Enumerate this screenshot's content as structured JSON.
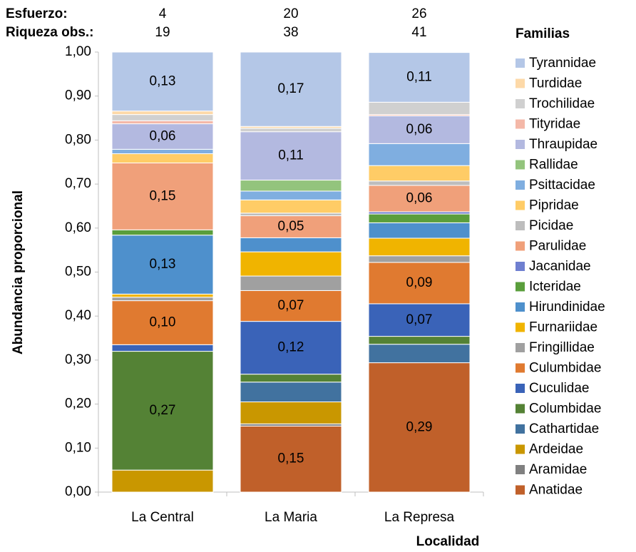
{
  "chart_data": {
    "type": "stacked_bar",
    "effort_label": "Esfuerzo:",
    "effort": [
      4,
      20,
      26
    ],
    "richness_label": "Riqueza obs.:",
    "richness": [
      19,
      38,
      41
    ],
    "ylabel": "Abundancia proporcional",
    "xlabel": "Localidad",
    "legend_title": "Familias",
    "legend": "right",
    "categories": [
      "La Central",
      "La Maria",
      "La Represa"
    ],
    "ylim": [
      0,
      1
    ],
    "yticks": [
      {
        "value": 0,
        "label": "0,00"
      },
      {
        "value": 0.1,
        "label": "0,10"
      },
      {
        "value": 0.2,
        "label": "0,20"
      },
      {
        "value": 0.3,
        "label": "0,30"
      },
      {
        "value": 0.4,
        "label": "0,40"
      },
      {
        "value": 0.5,
        "label": "0,50"
      },
      {
        "value": 0.6,
        "label": "0,60"
      },
      {
        "value": 0.7,
        "label": "0,70"
      },
      {
        "value": 0.8,
        "label": "0,80"
      },
      {
        "value": 0.9,
        "label": "0,90"
      },
      {
        "value": 1,
        "label": "1,00"
      }
    ],
    "series": [
      {
        "name": "Anatidae",
        "color": "#c0602a",
        "values": [
          0,
          0.15,
          0.294
        ],
        "value_labels": [
          null,
          "0,15",
          "0,29"
        ]
      },
      {
        "name": "Aramidae",
        "color": "#808080",
        "values": [
          0,
          0.005,
          0
        ]
      },
      {
        "name": "Ardeidae",
        "color": "#c99700",
        "values": [
          0.05,
          0.05,
          0
        ]
      },
      {
        "name": "Cathartidae",
        "color": "#41729f",
        "values": [
          0,
          0.045,
          0.042
        ]
      },
      {
        "name": "Columbidae",
        "color": "#548235",
        "values": [
          0.27,
          0.018,
          0.018
        ],
        "value_labels": [
          "0,27",
          null,
          null
        ]
      },
      {
        "name": "Cuculidae",
        "color": "#3a63b8",
        "values": [
          0.015,
          0.12,
          0.074
        ],
        "value_labels": [
          null,
          "0,12",
          "0,07"
        ]
      },
      {
        "name": "Culumbidae",
        "color": "#e07a30",
        "values": [
          0.1,
          0.07,
          0.094
        ],
        "value_labels": [
          "0,10",
          "0,07",
          "0,09"
        ]
      },
      {
        "name": "Fringillidae",
        "color": "#a0a0a0",
        "values": [
          0.008,
          0.033,
          0.015
        ]
      },
      {
        "name": "Furnariidae",
        "color": "#f0b400",
        "values": [
          0.007,
          0.055,
          0.04
        ]
      },
      {
        "name": "Hirundinidae",
        "color": "#4e90cc",
        "values": [
          0.134,
          0.032,
          0.035
        ],
        "value_labels": [
          "0,13",
          null,
          null
        ]
      },
      {
        "name": "Icteridae",
        "color": "#5a9e3c",
        "values": [
          0.012,
          0,
          0.02
        ]
      },
      {
        "name": "Jacanidae",
        "color": "#6f7fd0",
        "values": [
          0,
          0,
          0.005
        ]
      },
      {
        "name": "Parulidae",
        "color": "#f0a07a",
        "values": [
          0.152,
          0.05,
          0.06
        ],
        "value_labels": [
          "0,15",
          "0,05",
          "0,06"
        ]
      },
      {
        "name": "Picidae",
        "color": "#bdbdbd",
        "values": [
          0,
          0.006,
          0.01
        ]
      },
      {
        "name": "Pipridae",
        "color": "#ffcc66",
        "values": [
          0.021,
          0.03,
          0.035
        ]
      },
      {
        "name": "Psittacidae",
        "color": "#7faee0",
        "values": [
          0.01,
          0.02,
          0.05
        ]
      },
      {
        "name": "Rallidae",
        "color": "#93c47d",
        "values": [
          0,
          0.025,
          0
        ]
      },
      {
        "name": "Thraupidae",
        "color": "#b3b9e0",
        "values": [
          0.058,
          0.11,
          0.063
        ],
        "value_labels": [
          "0,06",
          "0,11",
          "0,06"
        ]
      },
      {
        "name": "Tityridae",
        "color": "#f4b8a8",
        "values": [
          0.007,
          0,
          0.003
        ]
      },
      {
        "name": "Trochilidae",
        "color": "#d0d0d0",
        "values": [
          0.014,
          0.008,
          0.028
        ]
      },
      {
        "name": "Turdidae",
        "color": "#fdd9a8",
        "values": [
          0.008,
          0.004,
          0
        ]
      },
      {
        "name": "Tyrannidae",
        "color": "#b4c7e7",
        "values": [
          0.134,
          0.169,
          0.113
        ],
        "value_labels": [
          "0,13",
          "0,17",
          "0,11"
        ]
      }
    ]
  }
}
